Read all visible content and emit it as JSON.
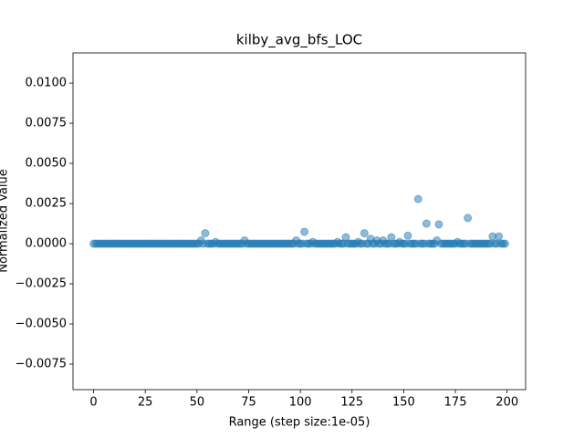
{
  "chart_data": {
    "type": "scatter",
    "title": "kilby_avg_bfs_LOC",
    "x_label": "Range (step size:1e-05)",
    "y_label": "Normalized Value",
    "xlim": [
      -9.95,
      208.95
    ],
    "ylim": [
      -0.00909,
      0.01188
    ],
    "xticks": [
      0,
      25,
      50,
      75,
      100,
      125,
      150,
      175,
      200
    ],
    "yticks": [
      {
        "value": -0.0075,
        "label": "−0.0075"
      },
      {
        "value": -0.005,
        "label": "−0.0050"
      },
      {
        "value": -0.0025,
        "label": "−0.0025"
      },
      {
        "value": 0,
        "label": "0.0000"
      },
      {
        "value": 0.0025,
        "label": "0.0025"
      },
      {
        "value": 0.005,
        "label": "0.0050"
      },
      {
        "value": 0.0075,
        "label": "0.0075"
      },
      {
        "value": 0.01,
        "label": "0.0100"
      }
    ],
    "color": "#1f77b4",
    "x": [
      0,
      1,
      2,
      3,
      4,
      5,
      6,
      7,
      8,
      9,
      10,
      11,
      12,
      13,
      14,
      15,
      16,
      17,
      18,
      19,
      20,
      21,
      22,
      23,
      24,
      25,
      26,
      27,
      28,
      29,
      30,
      31,
      32,
      33,
      34,
      35,
      36,
      37,
      38,
      39,
      40,
      41,
      42,
      43,
      44,
      45,
      46,
      47,
      48,
      49,
      50,
      51,
      52,
      53,
      54,
      55,
      56,
      57,
      58,
      59,
      60,
      61,
      62,
      63,
      64,
      65,
      66,
      67,
      68,
      69,
      70,
      71,
      72,
      73,
      74,
      75,
      76,
      77,
      78,
      79,
      80,
      81,
      82,
      83,
      84,
      85,
      86,
      87,
      88,
      89,
      90,
      91,
      92,
      93,
      94,
      95,
      96,
      97,
      98,
      99,
      100,
      101,
      102,
      103,
      104,
      105,
      106,
      107,
      108,
      109,
      110,
      111,
      112,
      113,
      114,
      115,
      116,
      117,
      118,
      119,
      120,
      121,
      122,
      123,
      124,
      125,
      126,
      127,
      128,
      129,
      130,
      131,
      132,
      133,
      134,
      135,
      136,
      137,
      138,
      139,
      140,
      141,
      142,
      143,
      144,
      145,
      146,
      147,
      148,
      149,
      150,
      151,
      152,
      153,
      154,
      155,
      156,
      157,
      158,
      159,
      160,
      161,
      162,
      163,
      164,
      165,
      166,
      167,
      168,
      169,
      170,
      171,
      172,
      173,
      174,
      175,
      176,
      177,
      178,
      179,
      180,
      181,
      182,
      183,
      184,
      185,
      186,
      187,
      188,
      189,
      190,
      191,
      192,
      193,
      194,
      195,
      196,
      197,
      198,
      199
    ],
    "values": [
      0,
      0,
      0,
      0,
      0,
      0,
      0,
      0,
      0,
      0,
      0,
      0,
      0,
      0,
      0,
      0,
      0,
      0,
      0,
      0,
      0,
      0,
      0,
      0,
      0,
      0,
      0,
      0,
      0,
      0,
      0,
      0,
      0,
      0,
      0,
      0,
      0,
      0,
      0,
      0,
      0,
      0,
      0,
      0,
      0,
      0,
      0,
      0,
      0,
      0,
      0,
      0,
      0.0002,
      0,
      0.00065,
      0,
      0,
      0,
      0,
      0.0001,
      0,
      0,
      0,
      0,
      0,
      0,
      0,
      0,
      0,
      0,
      0,
      0,
      0,
      0.0002,
      0,
      0,
      0,
      0,
      0,
      0,
      0,
      0,
      0,
      0,
      0,
      0,
      0,
      0,
      0,
      0,
      0,
      0,
      0,
      0,
      0,
      0,
      0,
      0,
      0.0002,
      0,
      0,
      0,
      0.00074,
      0,
      0,
      0,
      0.0001,
      0,
      0,
      0,
      0,
      0,
      0,
      0,
      0,
      0,
      0,
      0,
      0.0001,
      0,
      0,
      0,
      0.0004,
      0,
      0,
      0,
      0,
      0,
      0.0001,
      0,
      0,
      0.00065,
      0,
      0,
      0.0003,
      0,
      0,
      0.0002,
      0,
      0,
      0.0002,
      0,
      0,
      0,
      0.0004,
      0,
      0,
      0,
      0.0001,
      0,
      0,
      0,
      0.0005,
      0,
      0,
      0,
      0,
      0.00278,
      0,
      0,
      0,
      0.00125,
      0,
      0,
      0,
      0,
      0.0002,
      0.0012,
      0,
      0,
      0,
      0,
      0,
      0,
      0,
      0,
      0.0001,
      0,
      0,
      0,
      0,
      0.0016,
      0,
      0,
      0,
      0,
      0,
      0,
      0,
      0,
      0,
      0,
      0,
      0.00045,
      0,
      0,
      0.00045,
      0,
      0,
      0
    ]
  }
}
